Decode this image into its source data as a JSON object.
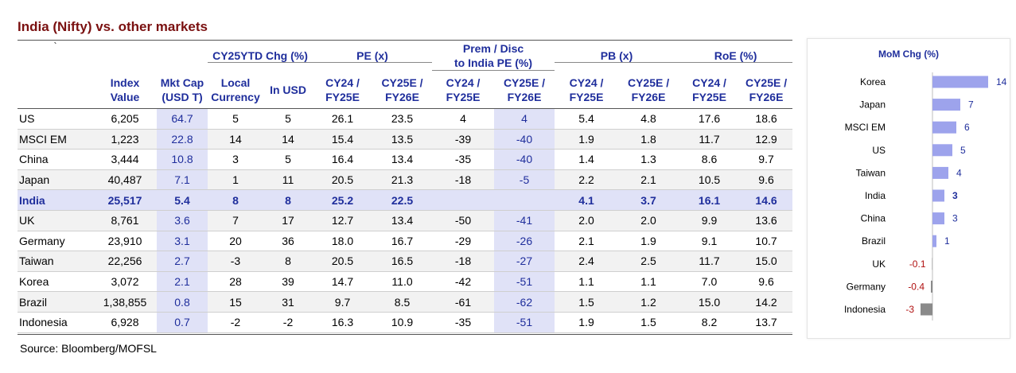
{
  "title": "India (Nifty) vs. other markets",
  "source": "Source: Bloomberg/MOFSL",
  "table": {
    "corner_mark": "`",
    "group_headers": {
      "ytd": "CY25YTD Chg (%)",
      "pe": "PE (x)",
      "prem_line1": "Prem / Disc",
      "prem_line2": "to India PE (%)",
      "pb": "PB (x)",
      "roe": "RoE (%)"
    },
    "col_headers": {
      "index_1": "Index",
      "index_2": "Value",
      "mcap_1": "Mkt Cap",
      "mcap_2": "(USD T)",
      "local_1": "Local",
      "local_2": "Currency",
      "usd": "In USD",
      "cy24_1": "CY24 /",
      "cy24_2": "FY25E",
      "cy25_1": "CY25E /",
      "cy25_2": "FY26E"
    },
    "rows": [
      {
        "country": "US",
        "index": "6,205",
        "mcap": "64.7",
        "local": "5",
        "usd": "5",
        "pe24": "26.1",
        "pe25": "23.5",
        "pr24": "4",
        "pr25": "4",
        "pb24": "5.4",
        "pb25": "4.8",
        "roe24": "17.6",
        "roe25": "18.6"
      },
      {
        "country": "MSCI EM",
        "index": "1,223",
        "mcap": "22.8",
        "local": "14",
        "usd": "14",
        "pe24": "15.4",
        "pe25": "13.5",
        "pr24": "-39",
        "pr25": "-40",
        "pb24": "1.9",
        "pb25": "1.8",
        "roe24": "11.7",
        "roe25": "12.9"
      },
      {
        "country": "China",
        "index": "3,444",
        "mcap": "10.8",
        "local": "3",
        "usd": "5",
        "pe24": "16.4",
        "pe25": "13.4",
        "pr24": "-35",
        "pr25": "-40",
        "pb24": "1.4",
        "pb25": "1.3",
        "roe24": "8.6",
        "roe25": "9.7"
      },
      {
        "country": "Japan",
        "index": "40,487",
        "mcap": "7.1",
        "local": "1",
        "usd": "11",
        "pe24": "20.5",
        "pe25": "21.3",
        "pr24": "-18",
        "pr25": "-5",
        "pb24": "2.2",
        "pb25": "2.1",
        "roe24": "10.5",
        "roe25": "9.6"
      },
      {
        "country": "India",
        "index": "25,517",
        "mcap": "5.4",
        "local": "8",
        "usd": "8",
        "pe24": "25.2",
        "pe25": "22.5",
        "pr24": "",
        "pr25": "",
        "pb24": "4.1",
        "pb25": "3.7",
        "roe24": "16.1",
        "roe25": "14.6"
      },
      {
        "country": "UK",
        "index": "8,761",
        "mcap": "3.6",
        "local": "7",
        "usd": "17",
        "pe24": "12.7",
        "pe25": "13.4",
        "pr24": "-50",
        "pr25": "-41",
        "pb24": "2.0",
        "pb25": "2.0",
        "roe24": "9.9",
        "roe25": "13.6"
      },
      {
        "country": "Germany",
        "index": "23,910",
        "mcap": "3.1",
        "local": "20",
        "usd": "36",
        "pe24": "18.0",
        "pe25": "16.7",
        "pr24": "-29",
        "pr25": "-26",
        "pb24": "2.1",
        "pb25": "1.9",
        "roe24": "9.1",
        "roe25": "10.7"
      },
      {
        "country": "Taiwan",
        "index": "22,256",
        "mcap": "2.7",
        "local": "-3",
        "usd": "8",
        "pe24": "20.5",
        "pe25": "16.5",
        "pr24": "-18",
        "pr25": "-27",
        "pb24": "2.4",
        "pb25": "2.5",
        "roe24": "11.7",
        "roe25": "15.0"
      },
      {
        "country": "Korea",
        "index": "3,072",
        "mcap": "2.1",
        "local": "28",
        "usd": "39",
        "pe24": "14.7",
        "pe25": "11.0",
        "pr24": "-42",
        "pr25": "-51",
        "pb24": "1.1",
        "pb25": "1.1",
        "roe24": "7.0",
        "roe25": "9.6"
      },
      {
        "country": "Brazil",
        "index": "1,38,855",
        "mcap": "0.8",
        "local": "15",
        "usd": "31",
        "pe24": "9.7",
        "pe25": "8.5",
        "pr24": "-61",
        "pr25": "-62",
        "pb24": "1.5",
        "pb25": "1.2",
        "roe24": "15.0",
        "roe25": "14.2"
      },
      {
        "country": "Indonesia",
        "index": "6,928",
        "mcap": "0.7",
        "local": "-2",
        "usd": "-2",
        "pe24": "16.3",
        "pe25": "10.9",
        "pr24": "-35",
        "pr25": "-51",
        "pb24": "1.9",
        "pb25": "1.5",
        "roe24": "8.2",
        "roe25": "13.7"
      }
    ]
  },
  "chart_data": {
    "type": "bar",
    "orientation": "horizontal",
    "title": "MoM Chg (%)",
    "categories": [
      "Korea",
      "Japan",
      "MSCI EM",
      "US",
      "Taiwan",
      "India",
      "China",
      "Brazil",
      "UK",
      "Germany",
      "Indonesia"
    ],
    "values": [
      14,
      7,
      6,
      5,
      4,
      3,
      3,
      1,
      -0.1,
      -0.4,
      -3
    ],
    "labels": [
      "14",
      "7",
      "6",
      "5",
      "4",
      "3",
      "3",
      "1",
      "-0.1",
      "-0.4",
      "-3"
    ],
    "highlight": "India",
    "colors": {
      "positive": "#9da3ec",
      "india": "#9da3ec",
      "negative": "#8a8a8a",
      "pos_label": "#1f2e9c",
      "neg_label": "#b01010"
    }
  },
  "colors": {
    "title": "#7a1010",
    "header": "#1f2e9c",
    "highlight_bg": "#e0e2f7",
    "alt_row": "#f2f2f2"
  }
}
